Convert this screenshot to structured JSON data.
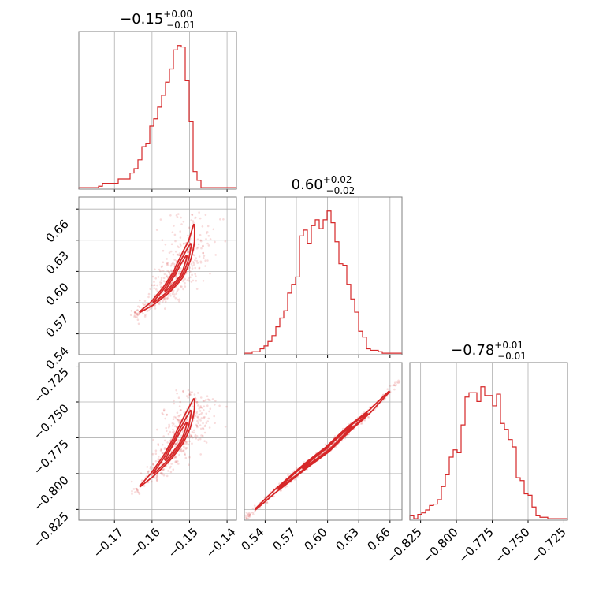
{
  "colors": {
    "accent": "#d62728",
    "grid": "#b0b0b0",
    "frame": "#808080"
  },
  "titles": {
    "p0": {
      "main": "−0.15",
      "sup": "+0.00",
      "sub": "−0.01"
    },
    "p1": {
      "main": "0.60",
      "sup": "+0.02",
      "sub": "−0.02"
    },
    "p2": {
      "main": "−0.78",
      "sup": "+0.01",
      "sub": "−0.01"
    }
  },
  "ticks": {
    "p0": [
      "−0.17",
      "−0.16",
      "−0.15",
      "−0.14"
    ],
    "p1": [
      "0.54",
      "0.57",
      "0.60",
      "0.63",
      "0.66"
    ],
    "p2": [
      "−0.825",
      "−0.800",
      "−0.775",
      "−0.750",
      "−0.725"
    ]
  },
  "chart_data": {
    "type": "corner",
    "parameters": [
      {
        "median": -0.15,
        "err_plus": 0.0,
        "err_minus": 0.01,
        "range": [
          -0.1795,
          -0.1375
        ],
        "tick_values": [
          -0.17,
          -0.16,
          -0.15,
          -0.14
        ],
        "histogram": [
          0.01,
          0.01,
          0.01,
          0.01,
          0.01,
          0.02,
          0.04,
          0.04,
          0.04,
          0.04,
          0.07,
          0.07,
          0.07,
          0.11,
          0.14,
          0.2,
          0.29,
          0.31,
          0.43,
          0.48,
          0.56,
          0.64,
          0.73,
          0.82,
          0.95,
          0.98,
          0.97,
          0.74,
          0.46,
          0.12,
          0.06,
          0.01,
          0.01,
          0.01,
          0.01,
          0.01,
          0.01,
          0.01,
          0.01,
          0.01
        ]
      },
      {
        "median": 0.6,
        "err_plus": 0.02,
        "err_minus": 0.02,
        "range": [
          0.52,
          0.6715
        ],
        "tick_values": [
          0.54,
          0.57,
          0.6,
          0.63,
          0.66
        ],
        "histogram": [
          0.01,
          0.01,
          0.02,
          0.02,
          0.04,
          0.06,
          0.09,
          0.13,
          0.19,
          0.25,
          0.3,
          0.42,
          0.48,
          0.53,
          0.81,
          0.85,
          0.76,
          0.88,
          0.92,
          0.86,
          0.92,
          0.98,
          0.9,
          0.77,
          0.62,
          0.61,
          0.48,
          0.38,
          0.29,
          0.16,
          0.12,
          0.04,
          0.03,
          0.03,
          0.02,
          0.01,
          0.01,
          0.01,
          0.01,
          0.01
        ]
      },
      {
        "median": -0.78,
        "err_plus": 0.01,
        "err_minus": 0.01,
        "range": [
          -0.8325,
          -0.7225
        ],
        "tick_values": [
          -0.825,
          -0.8,
          -0.775,
          -0.75,
          -0.725
        ],
        "histogram": [
          0.03,
          0.01,
          0.04,
          0.05,
          0.07,
          0.1,
          0.11,
          0.14,
          0.23,
          0.31,
          0.43,
          0.48,
          0.46,
          0.65,
          0.84,
          0.87,
          0.87,
          0.81,
          0.91,
          0.85,
          0.85,
          0.78,
          0.86,
          0.66,
          0.62,
          0.55,
          0.5,
          0.29,
          0.27,
          0.18,
          0.17,
          0.09,
          0.03,
          0.02,
          0.02,
          0.01,
          0.01,
          0.01,
          0.01,
          0.01
        ]
      }
    ],
    "correlation_ridges": {
      "p1_vs_p0": [
        [
          -0.1645,
          0.558
        ],
        [
          -0.16,
          0.569
        ],
        [
          -0.156,
          0.583
        ],
        [
          -0.153,
          0.597
        ],
        [
          -0.151,
          0.613
        ],
        [
          -0.1495,
          0.628
        ],
        [
          -0.1485,
          0.652
        ]
      ],
      "p2_vs_p0": [
        [
          -0.1645,
          -0.812
        ],
        [
          -0.16,
          -0.801
        ],
        [
          -0.156,
          -0.789
        ],
        [
          -0.153,
          -0.777
        ],
        [
          -0.151,
          -0.766
        ],
        [
          -0.1495,
          -0.755
        ],
        [
          -0.1485,
          -0.745
        ]
      ],
      "p2_vs_p1": [
        [
          0.523,
          -0.83
        ],
        [
          0.55,
          -0.812
        ],
        [
          0.58,
          -0.794
        ],
        [
          0.6,
          -0.783
        ],
        [
          0.62,
          -0.769
        ],
        [
          0.64,
          -0.757
        ],
        [
          0.667,
          -0.737
        ]
      ]
    }
  }
}
